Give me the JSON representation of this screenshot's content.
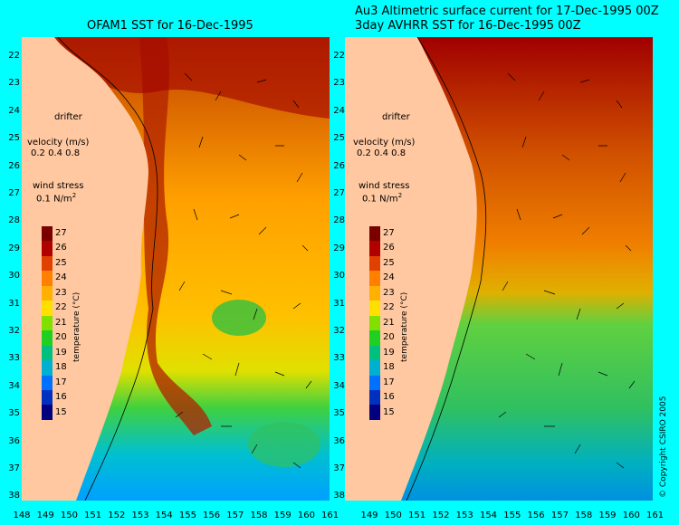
{
  "left_panel": {
    "title": "OFAM1 SST for 16-Dec-1995"
  },
  "right_panel": {
    "title_line1": "Au3 Altimetric surface current for 17-Dec-1995 00Z",
    "title_line2": "3day AVHRR SST for 16-Dec-1995 00Z"
  },
  "legend": {
    "drifter": "drifter",
    "velocity_label": "velocity (m/s)",
    "velocity_values": "0.2 0.4 0.8",
    "wind_label": "wind stress",
    "wind_value": "0.1 N/m",
    "wind_exp": "2"
  },
  "colorbar": {
    "title": "temperature (°C)",
    "ticks": [
      "27",
      "26",
      "25",
      "24",
      "23",
      "22",
      "21",
      "20",
      "19",
      "18",
      "17",
      "16",
      "15"
    ],
    "colors": [
      "#7a0000",
      "#b00000",
      "#e04000",
      "#ff8000",
      "#ffb000",
      "#ffe000",
      "#80e000",
      "#20d020",
      "#00c080",
      "#00b0d0",
      "#0070ff",
      "#0030c0",
      "#000080"
    ]
  },
  "axes": {
    "y_ticks": [
      "22",
      "23",
      "24",
      "25",
      "26",
      "27",
      "28",
      "29",
      "30",
      "31",
      "32",
      "33",
      "34",
      "35",
      "36",
      "37",
      "38"
    ],
    "x_ticks_left": [
      "148",
      "149",
      "150",
      "151",
      "152",
      "153",
      "154",
      "155",
      "156",
      "157",
      "158",
      "159",
      "160",
      "161"
    ],
    "x_ticks_right": [
      "149",
      "150",
      "151",
      "152",
      "153",
      "154",
      "155",
      "156",
      "157",
      "158",
      "159",
      "160",
      "161"
    ]
  },
  "copyright": "© Copyright CSIRO 2005"
}
